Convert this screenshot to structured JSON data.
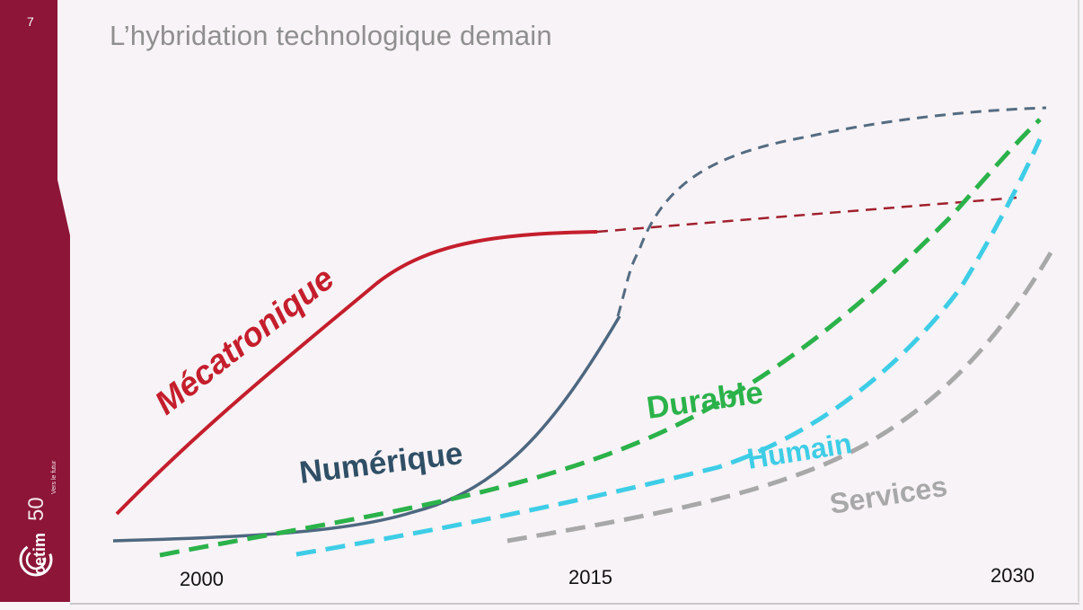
{
  "slide": {
    "number": "7",
    "title": "L’hybridation technologique demain"
  },
  "brand": {
    "logo_text": "cetim",
    "anniversary": "50",
    "tagline": "Vers le futur",
    "sidebar_color": "#8c1538"
  },
  "chart_data": {
    "type": "line",
    "x_ticks": [
      "2000",
      "2015",
      "2030"
    ],
    "curves": [
      {
        "name": "Mécatronique",
        "color": "#c41e2c",
        "style": "solid then dashed after 2015"
      },
      {
        "name": "Numérique",
        "color": "#4d6780",
        "style": "solid then dashed after 2015"
      },
      {
        "name": "Durable",
        "color": "#2bb24a",
        "style": "dashed"
      },
      {
        "name": "Humain",
        "color": "#3ecde6",
        "style": "dashed"
      },
      {
        "name": "Services",
        "color": "#a8a8a8",
        "style": "dashed"
      }
    ]
  }
}
